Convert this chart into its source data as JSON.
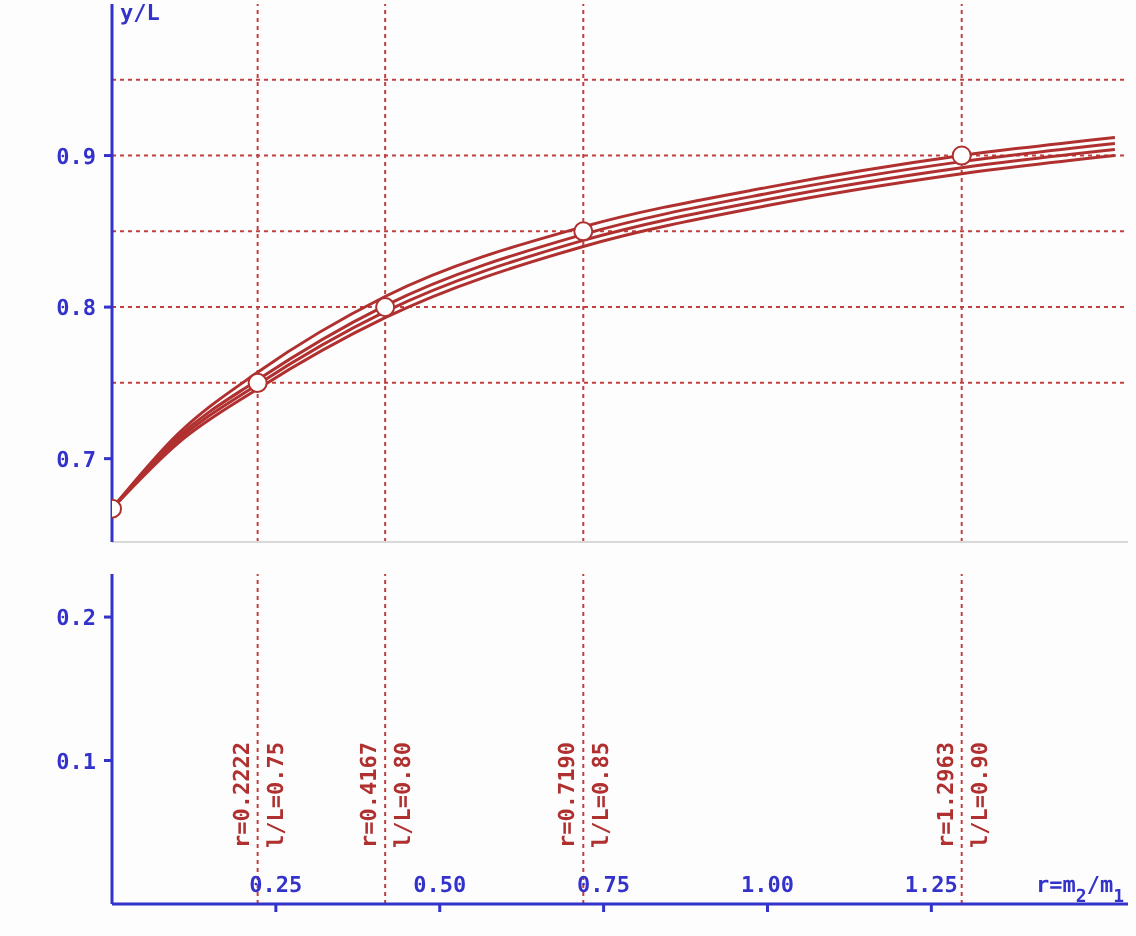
{
  "chart_data": [
    {
      "type": "line",
      "ylabel": "y/L",
      "xlim": [
        0,
        1.55
      ],
      "ylim": [
        0.645,
        1.0
      ],
      "yticks": [
        0.7,
        0.8,
        0.9
      ],
      "tick_labels": "y",
      "grid": false,
      "legend": false,
      "marker": "none",
      "line_style": "solid",
      "series": [
        {
          "color": "#b03030",
          "x": [
            0,
            0.1,
            0.2222,
            0.4167,
            0.719,
            1.0,
            1.2963,
            1.53
          ],
          "values": [
            0.667,
            0.716,
            0.757,
            0.807,
            0.853,
            0.879,
            0.9,
            0.912
          ]
        },
        {
          "color": "#b03030",
          "x": [
            0,
            0.1,
            0.2222,
            0.4167,
            0.719,
            1.0,
            1.2963,
            1.53
          ],
          "values": [
            0.667,
            0.714,
            0.752,
            0.801,
            0.848,
            0.875,
            0.896,
            0.908
          ]
        },
        {
          "color": "#b03030",
          "x": [
            0,
            0.1,
            0.2222,
            0.4167,
            0.719,
            1.0,
            1.2963,
            1.53
          ],
          "values": [
            0.667,
            0.712,
            0.749,
            0.797,
            0.844,
            0.871,
            0.892,
            0.904
          ]
        },
        {
          "color": "#b03030",
          "x": [
            0,
            0.1,
            0.2222,
            0.4167,
            0.719,
            1.0,
            1.2963,
            1.53
          ],
          "values": [
            0.667,
            0.71,
            0.746,
            0.793,
            0.84,
            0.867,
            0.888,
            0.9
          ]
        },
        {
          "type": "scatter",
          "marker": "circle",
          "color": "#b03030",
          "x": [
            0,
            0.2222,
            0.4167,
            0.719,
            1.2963
          ],
          "values": [
            0.667,
            0.75,
            0.8,
            0.85,
            0.9
          ]
        }
      ],
      "ref_lines": [
        {
          "axis": "y",
          "value": 0.75,
          "color": "#c04040",
          "line_style": "dotted"
        },
        {
          "axis": "y",
          "value": 0.8,
          "color": "#c04040",
          "line_style": "dotted"
        },
        {
          "axis": "y",
          "value": 0.85,
          "color": "#c04040",
          "line_style": "dotted"
        },
        {
          "axis": "y",
          "value": 0.9,
          "color": "#c04040",
          "line_style": "dotted"
        },
        {
          "axis": "y",
          "value": 0.95,
          "color": "#c04040",
          "line_style": "dotted"
        },
        {
          "axis": "x",
          "value": 0.2222,
          "color": "#c04040",
          "line_style": "dotted"
        },
        {
          "axis": "x",
          "value": 0.4167,
          "color": "#c04040",
          "line_style": "dotted"
        },
        {
          "axis": "x",
          "value": 0.719,
          "color": "#c04040",
          "line_style": "dotted"
        },
        {
          "axis": "x",
          "value": 1.2963,
          "color": "#c04040",
          "line_style": "dotted"
        }
      ]
    },
    {
      "type": "line",
      "xlabel": "r=m$_{2}$/m$_{1}$",
      "xlim": [
        0,
        1.55
      ],
      "ylim": [
        0,
        0.23
      ],
      "xticks": [
        0.25,
        {
          "value": 0.5,
          "label": "0.50"
        },
        0.75,
        {
          "value": 1.0,
          "label": "1.00"
        },
        1.25
      ],
      "yticks": [
        0.1,
        0.2
      ],
      "grid": false,
      "legend": false,
      "ref_lines": [
        {
          "axis": "x",
          "value": 0.2222,
          "label": "r=0.2222\nl/L=0.75",
          "color": "#c04040",
          "line_style": "dotted"
        },
        {
          "axis": "x",
          "value": 0.4167,
          "label": "r=0.4167\nl/L=0.80",
          "color": "#c04040",
          "line_style": "dotted"
        },
        {
          "axis": "x",
          "value": 0.719,
          "label": "r=0.7190\nl/L=0.85",
          "color": "#c04040",
          "line_style": "dotted"
        },
        {
          "axis": "x",
          "value": 1.2963,
          "label": "r=1.2963\nl/L=0.90",
          "color": "#c04040",
          "line_style": "dotted"
        }
      ]
    }
  ]
}
